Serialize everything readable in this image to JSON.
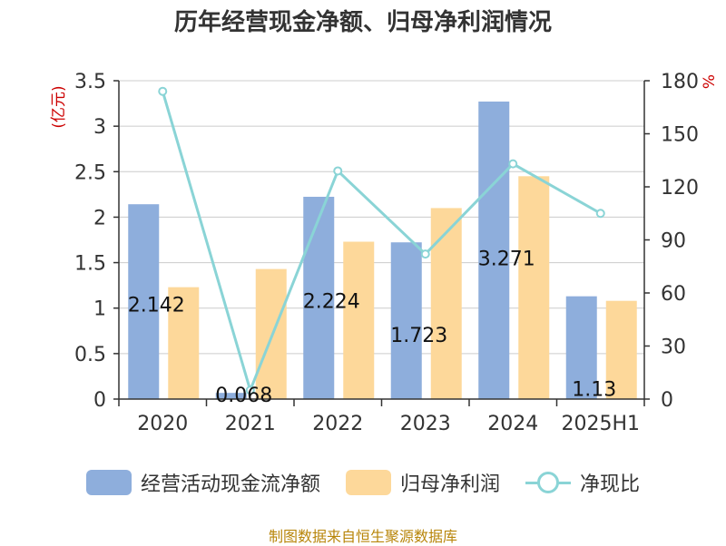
{
  "title": "历年经营现金净额、归母净利润情况",
  "source": "制图数据来自恒生聚源数据库",
  "legend": {
    "series1": "经营活动现金流净额",
    "series2": "归母净利润",
    "series3": "净现比"
  },
  "colors": {
    "bar1": "#8eaedc",
    "bar2": "#fdd89a",
    "line": "#8ad4d6",
    "axis_unit": "#cc0000"
  },
  "chart_data": {
    "type": "bar",
    "title": "历年经营现金净额、归母净利润情况",
    "categories": [
      "2020",
      "2021",
      "2022",
      "2023",
      "2024",
      "2025H1"
    ],
    "y_left_label": "(亿元)",
    "y_right_label": "%",
    "ylim_left": [
      0,
      3.5
    ],
    "ylim_right": [
      0,
      180
    ],
    "y_left_ticks": [
      "0",
      "0.5",
      "1",
      "1.5",
      "2",
      "2.5",
      "3",
      "3.5"
    ],
    "y_right_ticks": [
      "0",
      "30",
      "60",
      "90",
      "120",
      "150",
      "180"
    ],
    "grid": true,
    "legend_position": "bottom",
    "series": [
      {
        "name": "经营活动现金流净额",
        "type": "bar",
        "axis": "left",
        "values": [
          2.142,
          0.068,
          2.224,
          1.723,
          3.271,
          1.13
        ],
        "labels": [
          "2.142",
          "0.068",
          "2.224",
          "1.723",
          "3.271",
          "1.13"
        ]
      },
      {
        "name": "归母净利润",
        "type": "bar",
        "axis": "left",
        "values": [
          1.23,
          1.43,
          1.73,
          2.1,
          2.45,
          1.08
        ]
      },
      {
        "name": "净现比",
        "type": "line",
        "axis": "right",
        "values": [
          174,
          5,
          129,
          82,
          133,
          105
        ]
      }
    ]
  }
}
